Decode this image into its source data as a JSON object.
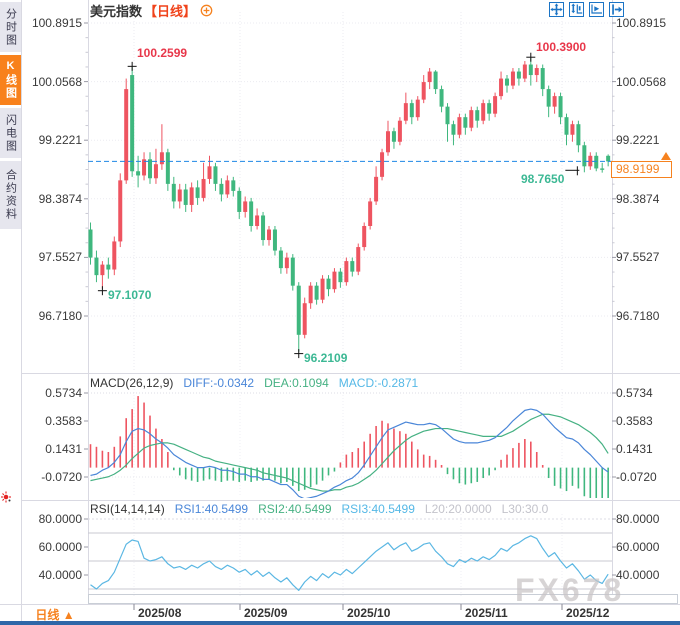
{
  "header": {
    "symbol": "美元指数",
    "period_tag": "【日线】"
  },
  "sidebar": {
    "tabs": [
      {
        "label": "分时图",
        "active": false
      },
      {
        "label": "K线图",
        "active": true
      },
      {
        "label": "闪电图",
        "active": false
      },
      {
        "label": "合约资料",
        "active": false
      }
    ]
  },
  "toolbar": {
    "icons": [
      "pan-move-icon",
      "axis-scale-icon",
      "axis-play-icon",
      "step-right-icon"
    ]
  },
  "price_tag": {
    "value": "98.9199"
  },
  "annotations": {
    "high1": "100.2599",
    "high2": "100.3900",
    "low1": "97.1070",
    "low2": "96.2109",
    "low3": "98.7650"
  },
  "axes": {
    "price": [
      "100.8915",
      "100.0568",
      "99.2221",
      "98.3874",
      "97.5527",
      "96.7180"
    ],
    "macd": [
      "0.5734",
      "0.3583",
      "0.1431",
      "-0.0720"
    ],
    "rsi": [
      "80.0000",
      "60.0000",
      "40.0000"
    ],
    "x": [
      "2025/08",
      "2025/09",
      "2025/10",
      "2025/11",
      "2025/12"
    ]
  },
  "macd_header": {
    "name": "MACD(26,12,9)",
    "diff": "DIFF:-0.0342",
    "dea": "DEA:0.1094",
    "macd": "MACD:-0.2871"
  },
  "rsi_header": {
    "name": "RSI(14,14,14)",
    "rsi1": "RSI1:40.5499",
    "rsi2": "RSI2:40.5499",
    "rsi3": "RSI3:40.5499",
    "l20": "L20:20.0000",
    "l30": "L30:30.0"
  },
  "bottom": {
    "period_label": "日线 ▲",
    "watermark": "FX678"
  },
  "colors": {
    "up": "#ee5460",
    "down": "#3fb77e",
    "accent": "#f6821f",
    "title_red": "#f0431b",
    "cur_line": "#1e88e5",
    "diff": "#4a86d8",
    "dea": "#46b183",
    "macd_line": "#55b8e6",
    "rsi_line": "#5bb7e3",
    "muted": "#c3c3cb",
    "side_active": "#f8811c",
    "tool_blue": "#1b74c5",
    "ann_red": "#e8374a",
    "ann_green": "#3cb894",
    "watermark": "#c9c4c6",
    "bottom_bar": "#2e67a8"
  },
  "chart_data": [
    {
      "name": "price",
      "type": "candlestick",
      "title": "美元指数 日线",
      "y_ticks": [
        100.8915,
        100.0568,
        99.2221,
        98.3874,
        97.5527,
        96.718
      ],
      "x_ticks": [
        "2025/08",
        "2025/09",
        "2025/10",
        "2025/11",
        "2025/12"
      ],
      "current_price": 98.9199,
      "markers": [
        {
          "i": 7,
          "v": 100.2599,
          "type": "cross",
          "pos": "high"
        },
        {
          "i": 74,
          "v": 100.39,
          "type": "cross",
          "pos": "high"
        },
        {
          "i": 2,
          "v": 97.107,
          "type": "cross",
          "pos": "low"
        },
        {
          "i": 35,
          "v": 96.2109,
          "type": "cross",
          "pos": "low"
        },
        {
          "i": 83,
          "v": 98.765,
          "type": "dash",
          "pos": "low"
        }
      ],
      "ohlc": [
        [
          97.95,
          98.05,
          97.45,
          97.55
        ],
        [
          97.55,
          97.65,
          97.2,
          97.3
        ],
        [
          97.3,
          97.5,
          97.107,
          97.45
        ],
        [
          97.45,
          97.55,
          97.25,
          97.38
        ],
        [
          97.38,
          97.85,
          97.3,
          97.78
        ],
        [
          97.78,
          98.75,
          97.7,
          98.65
        ],
        [
          98.65,
          100.1,
          98.6,
          99.95
        ],
        [
          100.15,
          100.2599,
          98.7,
          98.78
        ],
        [
          98.78,
          99.0,
          98.55,
          98.72
        ],
        [
          98.72,
          99.05,
          98.65,
          98.95
        ],
        [
          98.95,
          99.05,
          98.6,
          98.68
        ],
        [
          98.68,
          99.1,
          98.6,
          98.88
        ],
        [
          98.88,
          99.45,
          98.8,
          99.05
        ],
        [
          99.05,
          99.1,
          98.5,
          98.6
        ],
        [
          98.6,
          98.7,
          98.25,
          98.35
        ],
        [
          98.35,
          98.6,
          98.25,
          98.52
        ],
        [
          98.52,
          98.6,
          98.2,
          98.3
        ],
        [
          98.3,
          98.62,
          98.2,
          98.55
        ],
        [
          98.55,
          98.65,
          98.3,
          98.4
        ],
        [
          98.4,
          98.9,
          98.35,
          98.67
        ],
        [
          98.67,
          99.0,
          98.6,
          98.85
        ],
        [
          98.85,
          98.9,
          98.5,
          98.6
        ],
        [
          98.6,
          98.68,
          98.35,
          98.45
        ],
        [
          98.45,
          98.72,
          98.4,
          98.65
        ],
        [
          98.65,
          98.7,
          98.42,
          98.5
        ],
        [
          98.5,
          98.55,
          98.1,
          98.2
        ],
        [
          98.2,
          98.42,
          98.12,
          98.35
        ],
        [
          98.35,
          98.4,
          97.92,
          98.0
        ],
        [
          98.0,
          98.25,
          97.95,
          98.15
        ],
        [
          98.15,
          98.2,
          97.72,
          97.8
        ],
        [
          97.8,
          98.0,
          97.72,
          97.95
        ],
        [
          97.95,
          98.0,
          97.58,
          97.65
        ],
        [
          97.65,
          97.7,
          97.32,
          97.4
        ],
        [
          97.4,
          97.62,
          97.32,
          97.55
        ],
        [
          97.55,
          97.6,
          97.08,
          97.15
        ],
        [
          97.15,
          97.2,
          96.2109,
          96.45
        ],
        [
          96.45,
          96.98,
          96.4,
          96.9
        ],
        [
          96.9,
          97.2,
          96.82,
          97.15
        ],
        [
          97.15,
          97.2,
          96.88,
          96.95
        ],
        [
          96.95,
          97.3,
          96.9,
          97.25
        ],
        [
          97.25,
          97.3,
          97.0,
          97.1
        ],
        [
          97.1,
          97.4,
          97.05,
          97.35
        ],
        [
          97.35,
          97.4,
          97.12,
          97.2
        ],
        [
          97.2,
          97.55,
          97.15,
          97.5
        ],
        [
          97.5,
          97.55,
          97.28,
          97.35
        ],
        [
          97.35,
          97.75,
          97.3,
          97.7
        ],
        [
          97.7,
          98.05,
          97.65,
          98.0
        ],
        [
          98.0,
          98.4,
          97.95,
          98.35
        ],
        [
          98.35,
          98.85,
          98.3,
          98.7
        ],
        [
          98.7,
          99.1,
          98.65,
          99.05
        ],
        [
          99.05,
          99.5,
          99.0,
          99.35
        ],
        [
          99.35,
          99.4,
          99.1,
          99.2
        ],
        [
          99.2,
          99.55,
          99.15,
          99.5
        ],
        [
          99.5,
          99.9,
          99.45,
          99.75
        ],
        [
          99.75,
          99.8,
          99.45,
          99.55
        ],
        [
          99.55,
          99.85,
          99.5,
          99.8
        ],
        [
          99.8,
          100.15,
          99.75,
          100.05
        ],
        [
          100.05,
          100.25,
          99.95,
          100.2
        ],
        [
          100.2,
          100.22,
          99.88,
          99.95
        ],
        [
          99.95,
          100.0,
          99.62,
          99.7
        ],
        [
          99.7,
          99.75,
          99.2,
          99.45
        ],
        [
          99.45,
          99.5,
          99.15,
          99.3
        ],
        [
          99.3,
          99.6,
          99.25,
          99.55
        ],
        [
          99.55,
          99.6,
          99.3,
          99.4
        ],
        [
          99.4,
          99.7,
          99.35,
          99.65
        ],
        [
          99.65,
          99.7,
          99.4,
          99.5
        ],
        [
          99.5,
          99.8,
          99.45,
          99.75
        ],
        [
          99.75,
          99.8,
          99.5,
          99.6
        ],
        [
          99.6,
          99.9,
          99.55,
          99.85
        ],
        [
          99.85,
          100.2,
          99.8,
          100.1
        ],
        [
          100.1,
          100.15,
          99.9,
          100.0
        ],
        [
          100.0,
          100.25,
          99.95,
          100.2
        ],
        [
          100.2,
          100.25,
          100.0,
          100.1
        ],
        [
          100.1,
          100.35,
          100.05,
          100.3
        ],
        [
          100.3,
          100.39,
          100.0,
          100.15
        ],
        [
          100.15,
          100.3,
          100.05,
          100.25
        ],
        [
          100.25,
          100.3,
          99.85,
          99.95
        ],
        [
          99.95,
          100.0,
          99.55,
          99.7
        ],
        [
          99.7,
          99.9,
          99.6,
          99.85
        ],
        [
          99.85,
          99.9,
          99.45,
          99.55
        ],
        [
          99.55,
          99.6,
          99.15,
          99.3
        ],
        [
          99.3,
          99.5,
          99.2,
          99.45
        ],
        [
          99.45,
          99.5,
          99.05,
          99.15
        ],
        [
          99.15,
          99.2,
          98.765,
          98.85
        ],
        [
          98.85,
          99.05,
          98.8,
          99.0
        ],
        [
          99.0,
          99.05,
          98.78,
          98.82
        ],
        [
          98.82,
          98.9,
          98.76,
          98.8
        ],
        [
          99.0,
          99.02,
          98.85,
          98.92
        ]
      ]
    },
    {
      "name": "macd",
      "type": "bar",
      "params": "MACD(26,12,9)",
      "y_ticks": [
        0.5734,
        0.3583,
        0.1431,
        -0.072
      ],
      "values": {
        "diff": -0.0342,
        "dea": 0.1094,
        "macd": -0.2871
      },
      "hist": [
        0.18,
        0.16,
        0.13,
        0.12,
        0.16,
        0.24,
        0.38,
        0.45,
        0.55,
        0.5,
        0.4,
        0.3,
        0.22,
        0.12,
        -0.02,
        -0.06,
        -0.09,
        -0.1,
        -0.11,
        -0.1,
        -0.09,
        -0.1,
        -0.11,
        -0.1,
        -0.1,
        -0.11,
        -0.1,
        -0.11,
        -0.1,
        -0.1,
        -0.09,
        -0.1,
        -0.12,
        -0.11,
        -0.14,
        -0.18,
        -0.17,
        -0.15,
        -0.13,
        -0.1,
        -0.06,
        -0.03,
        0.04,
        0.1,
        0.12,
        0.15,
        0.2,
        0.26,
        0.32,
        0.36,
        0.34,
        0.3,
        0.28,
        0.26,
        0.2,
        0.14,
        0.1,
        0.09,
        0.06,
        0.02,
        -0.05,
        -0.09,
        -0.12,
        -0.13,
        -0.12,
        -0.11,
        -0.08,
        -0.06,
        -0.02,
        0.06,
        0.1,
        0.15,
        0.19,
        0.22,
        0.2,
        0.12,
        0.02,
        -0.08,
        -0.14,
        -0.16,
        -0.18,
        -0.14,
        -0.16,
        -0.22,
        -0.24,
        -0.26,
        -0.28,
        -0.2871
      ],
      "diff": [
        -0.06,
        -0.05,
        -0.02,
        0.0,
        0.04,
        0.1,
        0.2,
        0.28,
        0.3,
        0.29,
        0.26,
        0.22,
        0.19,
        0.15,
        0.1,
        0.07,
        0.04,
        0.02,
        0.0,
        0.0,
        0.01,
        0.0,
        -0.02,
        -0.02,
        -0.03,
        -0.05,
        -0.05,
        -0.07,
        -0.07,
        -0.09,
        -0.09,
        -0.11,
        -0.13,
        -0.13,
        -0.17,
        -0.22,
        -0.24,
        -0.23,
        -0.22,
        -0.2,
        -0.18,
        -0.15,
        -0.13,
        -0.1,
        -0.08,
        -0.04,
        0.02,
        0.09,
        0.16,
        0.23,
        0.29,
        0.31,
        0.33,
        0.35,
        0.34,
        0.33,
        0.33,
        0.34,
        0.33,
        0.3,
        0.26,
        0.22,
        0.2,
        0.19,
        0.19,
        0.19,
        0.2,
        0.21,
        0.23,
        0.27,
        0.31,
        0.36,
        0.4,
        0.44,
        0.45,
        0.44,
        0.41,
        0.36,
        0.31,
        0.27,
        0.23,
        0.22,
        0.19,
        0.14,
        0.1,
        0.05,
        0.0,
        -0.034
      ],
      "dea": [
        -0.1,
        -0.09,
        -0.08,
        -0.07,
        -0.05,
        -0.02,
        0.02,
        0.07,
        0.11,
        0.15,
        0.17,
        0.18,
        0.19,
        0.19,
        0.18,
        0.16,
        0.14,
        0.12,
        0.1,
        0.08,
        0.07,
        0.05,
        0.04,
        0.03,
        0.02,
        0.01,
        0.0,
        -0.01,
        -0.02,
        -0.04,
        -0.05,
        -0.06,
        -0.07,
        -0.08,
        -0.1,
        -0.12,
        -0.14,
        -0.16,
        -0.17,
        -0.18,
        -0.18,
        -0.17,
        -0.17,
        -0.15,
        -0.14,
        -0.12,
        -0.09,
        -0.06,
        -0.02,
        0.03,
        0.08,
        0.13,
        0.17,
        0.21,
        0.24,
        0.26,
        0.28,
        0.29,
        0.3,
        0.3,
        0.3,
        0.29,
        0.28,
        0.27,
        0.26,
        0.25,
        0.24,
        0.24,
        0.24,
        0.24,
        0.26,
        0.28,
        0.31,
        0.34,
        0.37,
        0.39,
        0.41,
        0.41,
        0.4,
        0.39,
        0.37,
        0.35,
        0.33,
        0.3,
        0.27,
        0.23,
        0.18,
        0.109
      ]
    },
    {
      "name": "rsi",
      "type": "line",
      "params": "RSI(14,14,14)",
      "y_ticks": [
        80,
        60,
        40
      ],
      "levels": [
        70,
        50,
        30
      ],
      "current": 40.5499,
      "values": [
        33,
        30,
        34,
        36,
        42,
        52,
        62,
        65,
        64,
        52,
        50,
        51,
        53,
        48,
        45,
        46,
        44,
        47,
        45,
        48,
        50,
        46,
        44,
        47,
        45,
        42,
        44,
        40,
        43,
        39,
        42,
        38,
        35,
        38,
        33,
        29,
        35,
        39,
        36,
        41,
        38,
        42,
        40,
        44,
        41,
        45,
        49,
        53,
        57,
        60,
        63,
        58,
        61,
        63,
        57,
        59,
        62,
        63,
        57,
        53,
        48,
        46,
        51,
        49,
        52,
        50,
        53,
        51,
        54,
        59,
        57,
        61,
        63,
        66,
        68,
        66,
        59,
        53,
        56,
        50,
        45,
        48,
        43,
        37,
        40,
        36,
        34,
        40.55
      ]
    }
  ]
}
